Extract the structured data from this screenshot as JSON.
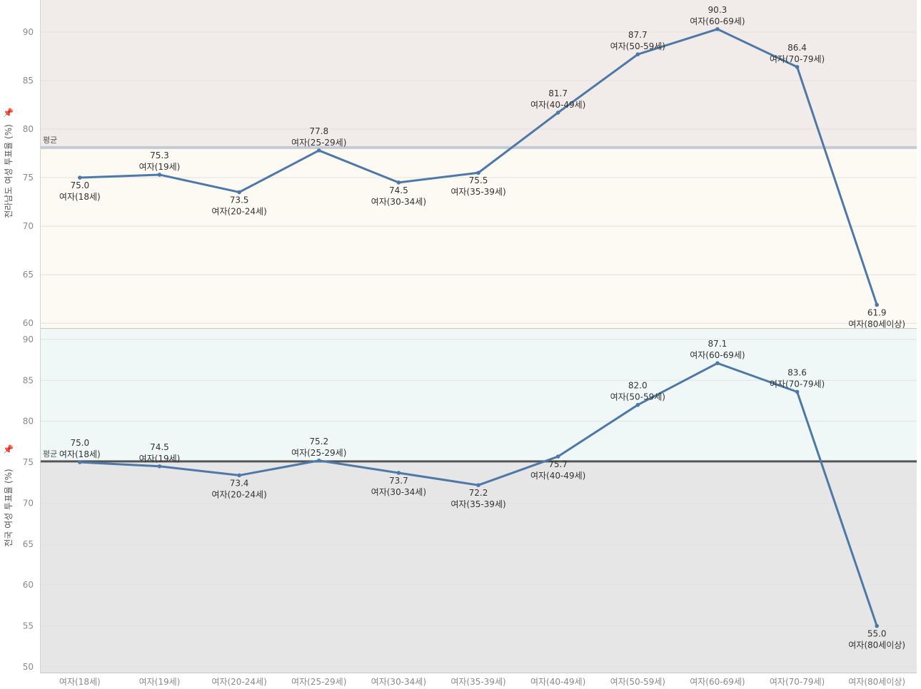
{
  "chart_data": {
    "type": "line",
    "categories": [
      "여자(18세)",
      "여자(19세)",
      "여자(20-24세)",
      "여자(25-29세)",
      "여자(30-34세)",
      "여자(35-39세)",
      "여자(40-49세)",
      "여자(50-59세)",
      "여자(60-69세)",
      "여자(70-79세)",
      "여자(80세이상)"
    ],
    "line_color": "#4e79a7",
    "panels": [
      {
        "name": "jeonnam",
        "ylabel": "전라남도 여성 투표율 (%)",
        "ylim": [
          59.5,
          93.3
        ],
        "yticks": [
          60,
          65,
          70,
          75,
          80,
          85,
          90
        ],
        "values": [
          75.0,
          75.3,
          73.5,
          77.8,
          74.5,
          75.5,
          81.7,
          87.7,
          90.3,
          86.4,
          61.9
        ],
        "value_labels": [
          "75.0",
          "75.3",
          "73.5",
          "77.8",
          "74.5",
          "75.5",
          "81.7",
          "87.7",
          "90.3",
          "86.4",
          "61.9"
        ],
        "label_positions": [
          "below",
          "above",
          "below",
          "above",
          "below",
          "below",
          "above",
          "above",
          "above",
          "above",
          "below"
        ],
        "reference_line": {
          "label": "평균",
          "value": 78.1
        },
        "band_above_color": "#f1ebe9",
        "band_below_color": "#fdf9f3",
        "ref_line_color": "#c4cbd4"
      },
      {
        "name": "national",
        "ylabel": "전국 여성 투표율 (%)",
        "ylim": [
          49.3,
          91.3
        ],
        "yticks": [
          50,
          55,
          60,
          65,
          70,
          75,
          80,
          85,
          90
        ],
        "values": [
          75.0,
          74.5,
          73.4,
          75.2,
          73.7,
          72.2,
          75.7,
          82.0,
          87.1,
          83.6,
          55.0
        ],
        "value_labels": [
          "75.0",
          "74.5",
          "73.4",
          "75.2",
          "73.7",
          "72.2",
          "75.7",
          "82.0",
          "87.1",
          "83.6",
          "55.0"
        ],
        "label_positions": [
          "above",
          "above",
          "below",
          "above",
          "below",
          "below",
          "below",
          "above",
          "above",
          "above",
          "below"
        ],
        "reference_line": {
          "label": "평균",
          "value": 75.1
        },
        "band_above_color": "#f0f7f7",
        "band_below_color": "#e6e6e6",
        "ref_line_color": "#555555"
      }
    ]
  }
}
